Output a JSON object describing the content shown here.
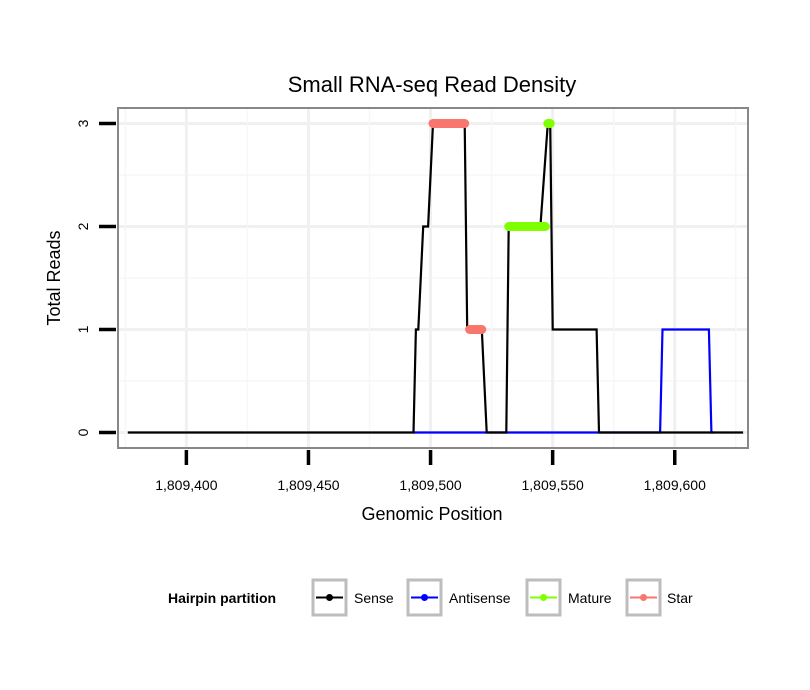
{
  "chart_data": {
    "type": "line",
    "title": "Small RNA-seq Read Density",
    "xlabel": "Genomic Position",
    "ylabel": "Total Reads",
    "xlim": [
      1809372,
      1809630
    ],
    "ylim": [
      -0.15,
      3.15
    ],
    "xticks": [
      1809400,
      1809450,
      1809500,
      1809550,
      1809600
    ],
    "xtick_labels": [
      "1,809,400",
      "1,809,450",
      "1,809,500",
      "1,809,550",
      "1,809,600"
    ],
    "yticks": [
      0,
      1,
      2,
      3
    ],
    "ytick_labels": [
      "0",
      "1",
      "2",
      "3"
    ],
    "grid": true,
    "legend_position": "bottom",
    "legend_title": "Hairpin partition",
    "series": [
      {
        "name": "Sense",
        "color": "#000000",
        "kind": "step-line",
        "x": [
          1809376,
          1809493,
          1809494,
          1809495,
          1809497,
          1809499,
          1809501,
          1809514,
          1809515,
          1809516,
          1809520,
          1809521,
          1809523,
          1809531,
          1809532,
          1809545,
          1809548,
          1809549,
          1809550,
          1809568,
          1809569,
          1809628
        ],
        "y": [
          0,
          0,
          1,
          1,
          2,
          2,
          3,
          3,
          1,
          1,
          1,
          1,
          0,
          0,
          2,
          2,
          3,
          3,
          1,
          1,
          0,
          0
        ]
      },
      {
        "name": "Antisense",
        "color": "#0000ff",
        "kind": "step-line",
        "x": [
          1809493,
          1809594,
          1809595,
          1809614,
          1809615,
          1809616
        ],
        "y": [
          0,
          0,
          1,
          1,
          0,
          0
        ]
      },
      {
        "name": "Mature",
        "color": "#7fff00",
        "kind": "points",
        "segments": [
          {
            "x_start": 1809532,
            "x_end": 1809547,
            "y": 2
          },
          {
            "x_start": 1809548,
            "x_end": 1809549,
            "y": 3
          }
        ]
      },
      {
        "name": "Star",
        "color": "#f8766d",
        "kind": "points",
        "segments": [
          {
            "x_start": 1809501,
            "x_end": 1809514,
            "y": 3
          },
          {
            "x_start": 1809516,
            "x_end": 1809521,
            "y": 1
          }
        ]
      }
    ]
  }
}
